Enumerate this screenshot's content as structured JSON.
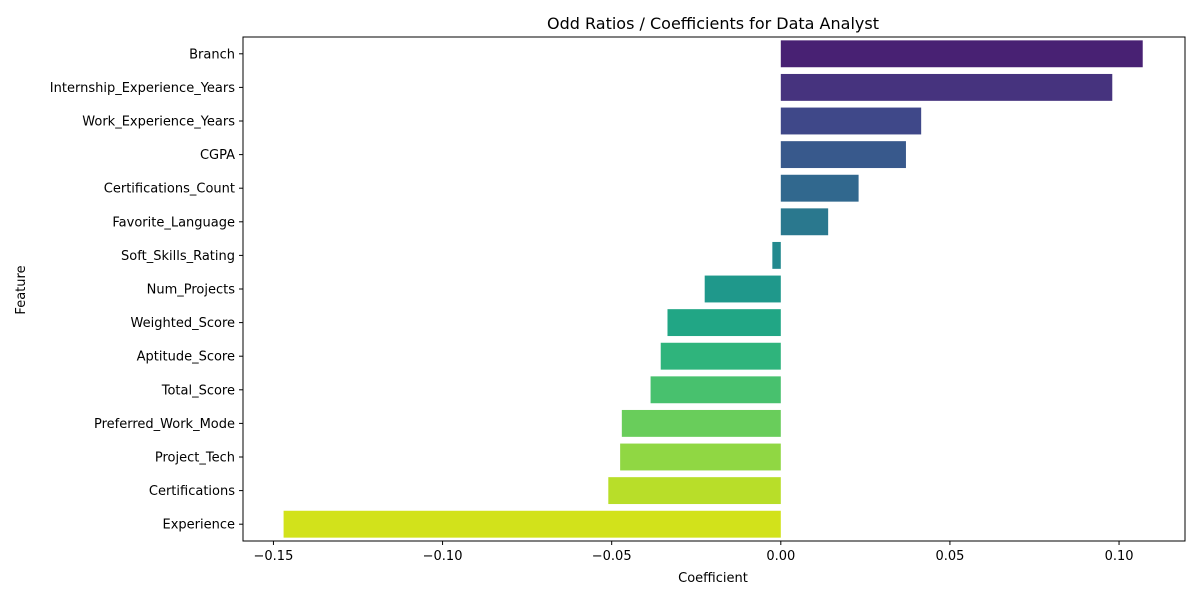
{
  "chart_data": {
    "type": "bar",
    "orientation": "horizontal",
    "title": "Odd Ratios / Coefficients for Data Analyst",
    "xlabel": "Coefficient",
    "ylabel": "Feature",
    "xlim": [
      -0.159,
      0.1195
    ],
    "xticks": [
      -0.15,
      -0.1,
      -0.05,
      0.0,
      0.05,
      0.1
    ],
    "xtick_labels": [
      "−0.15",
      "−0.10",
      "−0.05",
      "0.00",
      "0.05",
      "0.10"
    ],
    "grid": false,
    "categories": [
      "Branch",
      "Internship_Experience_Years",
      "Work_Experience_Years",
      "CGPA",
      "Certifications_Count",
      "Favorite_Language",
      "Soft_Skills_Rating",
      "Num_Projects",
      "Weighted_Score",
      "Aptitude_Score",
      "Total_Score",
      "Preferred_Work_Mode",
      "Project_Tech",
      "Certifications",
      "Experience"
    ],
    "values": [
      0.107,
      0.098,
      0.0415,
      0.037,
      0.023,
      0.014,
      -0.0025,
      -0.0225,
      -0.0335,
      -0.0355,
      -0.0385,
      -0.047,
      -0.0475,
      -0.051,
      -0.147
    ],
    "colors": [
      "#482173",
      "#46337e",
      "#3f4889",
      "#38598c",
      "#31688e",
      "#2a788e",
      "#23898e",
      "#1f988b",
      "#21a685",
      "#2fb47c",
      "#48c16e",
      "#69cd5b",
      "#90d743",
      "#b8de29",
      "#d2e21b"
    ]
  }
}
